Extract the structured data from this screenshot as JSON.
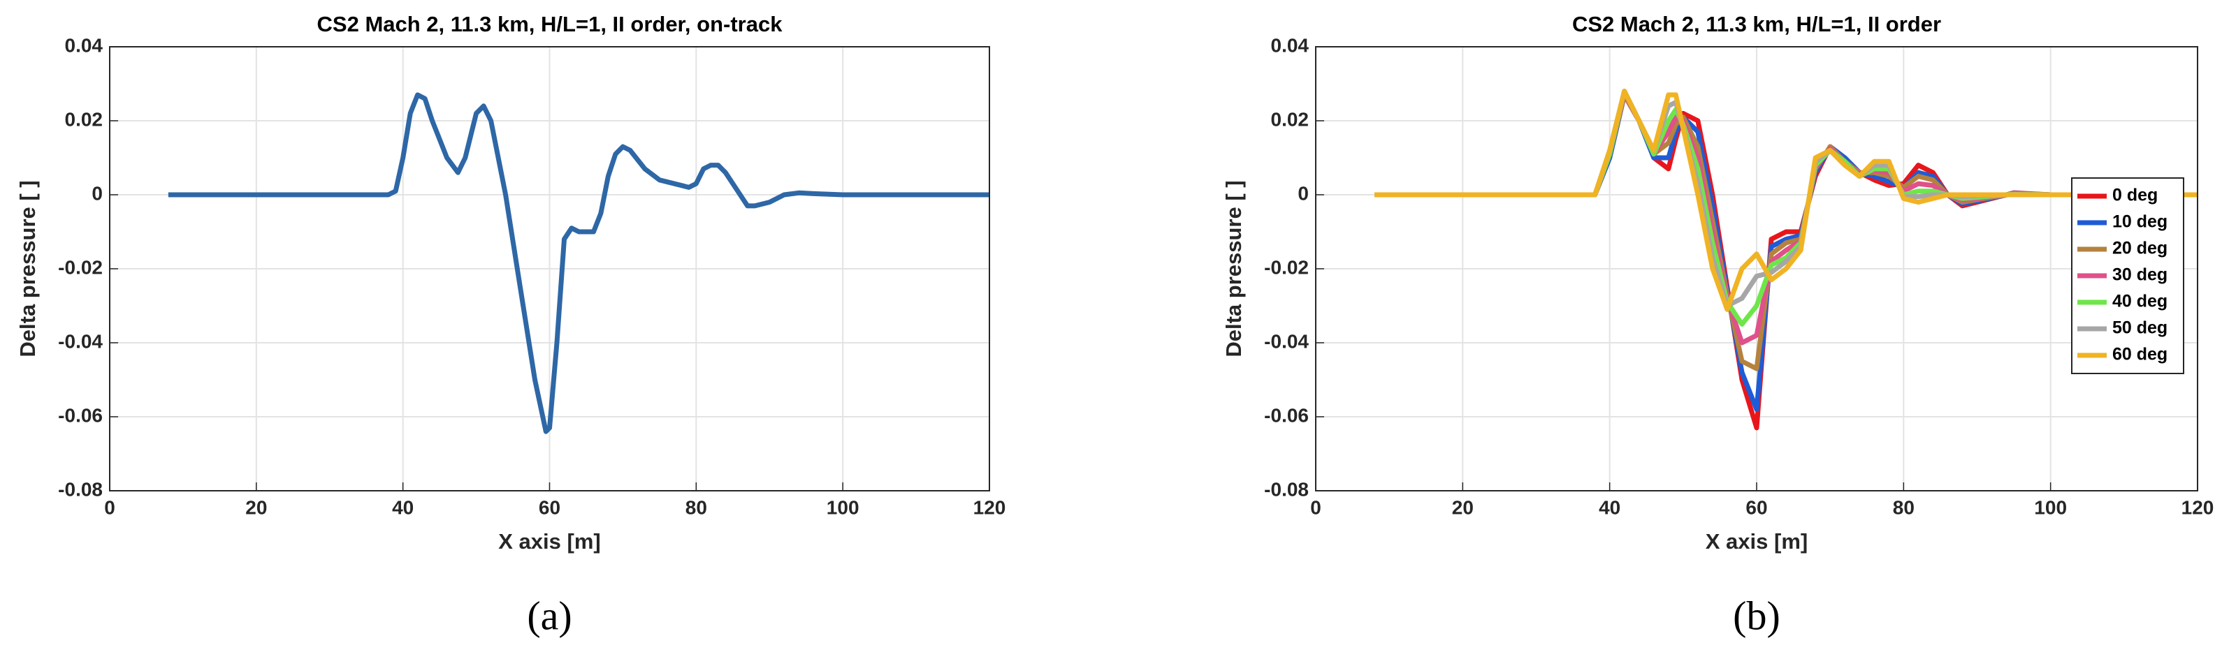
{
  "chart_data": [
    {
      "type": "line",
      "title": "CS2 Mach 2, 11.3 km, H/L=1, II order, on-track",
      "xlabel": "X axis [m]",
      "ylabel": "Delta pressure [ ]",
      "caption": "(a)",
      "x": [
        8,
        38,
        39,
        40,
        41,
        42,
        43,
        44,
        46,
        47.5,
        48.5,
        50,
        51,
        52,
        54,
        56,
        58,
        59.5,
        60,
        61,
        62,
        63,
        64,
        66,
        67,
        68,
        69,
        70,
        71,
        73,
        75,
        78,
        79,
        80,
        81,
        82,
        83,
        84,
        86,
        87,
        88,
        90,
        92,
        94,
        96,
        100,
        120
      ],
      "values": [
        0,
        0,
        0.001,
        0.01,
        0.022,
        0.027,
        0.026,
        0.02,
        0.01,
        0.006,
        0.01,
        0.022,
        0.024,
        0.02,
        0.0,
        -0.025,
        -0.05,
        -0.064,
        -0.063,
        -0.04,
        -0.012,
        -0.009,
        -0.01,
        -0.01,
        -0.005,
        0.005,
        0.011,
        0.013,
        0.012,
        0.007,
        0.004,
        0.0025,
        0.002,
        0.003,
        0.007,
        0.008,
        0.008,
        0.006,
        0.0,
        -0.003,
        -0.003,
        -0.002,
        0,
        0.0005,
        0.0003,
        0,
        0
      ],
      "color": "#2e67a6",
      "xlim": [
        0,
        120
      ],
      "xticks": [
        0,
        20,
        40,
        60,
        80,
        100,
        120
      ],
      "ylim": [
        -0.08,
        0.04
      ],
      "yticks": [
        0.04,
        0.02,
        0,
        -0.02,
        -0.04,
        -0.06,
        -0.08
      ],
      "grid": true
    },
    {
      "type": "line",
      "title": "CS2 Mach 2, 11.3 km, H/L=1, II order",
      "xlabel": "X axis [m]",
      "ylabel": "Delta pressure [ ]",
      "caption": "(b)",
      "x": [
        8,
        38,
        40,
        42,
        44,
        46,
        48,
        49,
        50,
        52,
        54,
        56,
        58,
        60,
        62,
        64,
        66,
        68,
        70,
        72,
        74,
        76,
        78,
        80,
        82,
        84,
        86,
        88,
        90,
        95,
        100,
        120
      ],
      "series": [
        {
          "name": "0 deg",
          "color": "#e8161b",
          "values": [
            0,
            0,
            0.01,
            0.027,
            0.02,
            0.01,
            0.007,
            0.015,
            0.022,
            0.02,
            0,
            -0.025,
            -0.05,
            -0.063,
            -0.012,
            -0.01,
            -0.01,
            0.005,
            0.013,
            0.01,
            0.006,
            0.004,
            0.0025,
            0.003,
            0.008,
            0.006,
            0,
            -0.003,
            -0.002,
            0.0005,
            0,
            0
          ]
        },
        {
          "name": "10 deg",
          "color": "#1f5bd6",
          "values": [
            0,
            0,
            0.01,
            0.027,
            0.02,
            0.01,
            0.01,
            0.017,
            0.021,
            0.017,
            -0.003,
            -0.026,
            -0.048,
            -0.058,
            -0.014,
            -0.012,
            -0.011,
            0.006,
            0.013,
            0.01,
            0.006,
            0.005,
            0.0035,
            0.002,
            0.006,
            0.005,
            0,
            -0.0025,
            -0.0017,
            0.0004,
            0,
            0
          ]
        },
        {
          "name": "20 deg",
          "color": "#b5823e",
          "values": [
            0,
            0,
            0.011,
            0.027,
            0.02,
            0.011,
            0.014,
            0.019,
            0.021,
            0.013,
            -0.007,
            -0.027,
            -0.045,
            -0.047,
            -0.016,
            -0.013,
            -0.012,
            0.007,
            0.013,
            0.009,
            0.006,
            0.006,
            0.005,
            0.002,
            0.005,
            0.004,
            0,
            -0.002,
            -0.0013,
            0.0003,
            0,
            0
          ]
        },
        {
          "name": "30 deg",
          "color": "#e0508a",
          "values": [
            0,
            0,
            0.011,
            0.0275,
            0.02,
            0.011,
            0.017,
            0.021,
            0.02,
            0.01,
            -0.01,
            -0.028,
            -0.04,
            -0.038,
            -0.018,
            -0.015,
            -0.0125,
            0.0075,
            0.0125,
            0.009,
            0.0055,
            0.0065,
            0.006,
            0.001,
            0.003,
            0.0025,
            0,
            -0.0015,
            -0.001,
            0.0002,
            0,
            0
          ]
        },
        {
          "name": "40 deg",
          "color": "#6ee64a",
          "values": [
            0,
            0,
            0.011,
            0.028,
            0.02,
            0.011,
            0.02,
            0.023,
            0.019,
            0.007,
            -0.013,
            -0.029,
            -0.035,
            -0.03,
            -0.019,
            -0.017,
            -0.013,
            0.008,
            0.012,
            0.009,
            0.005,
            0.007,
            0.007,
            0,
            0.001,
            0.001,
            0,
            -0.001,
            -0.0007,
            0.0002,
            0,
            0
          ]
        },
        {
          "name": "50 deg",
          "color": "#a6a6a6",
          "values": [
            0,
            0,
            0.012,
            0.028,
            0.02,
            0.012,
            0.024,
            0.025,
            0.018,
            0.003,
            -0.017,
            -0.03,
            -0.028,
            -0.022,
            -0.021,
            -0.018,
            -0.014,
            0.009,
            0.012,
            0.008,
            0.005,
            0.008,
            0.008,
            -0.0005,
            -0.0005,
            0,
            0,
            -0.0005,
            -0.0003,
            0.0001,
            0,
            0
          ]
        },
        {
          "name": "60 deg",
          "color": "#f0b323",
          "values": [
            0,
            0,
            0.012,
            0.028,
            0.02,
            0.012,
            0.027,
            0.027,
            0.018,
            0,
            -0.02,
            -0.031,
            -0.02,
            -0.016,
            -0.023,
            -0.02,
            -0.015,
            0.01,
            0.012,
            0.008,
            0.005,
            0.009,
            0.009,
            -0.001,
            -0.002,
            -0.001,
            0,
            0,
            0,
            0,
            0,
            0
          ]
        }
      ],
      "xlim": [
        0,
        120
      ],
      "xticks": [
        0,
        20,
        40,
        60,
        80,
        100,
        120
      ],
      "ylim": [
        -0.08,
        0.04
      ],
      "yticks": [
        0.04,
        0.02,
        0,
        -0.02,
        -0.04,
        -0.06,
        -0.08
      ],
      "grid": true,
      "legend": "right"
    }
  ]
}
